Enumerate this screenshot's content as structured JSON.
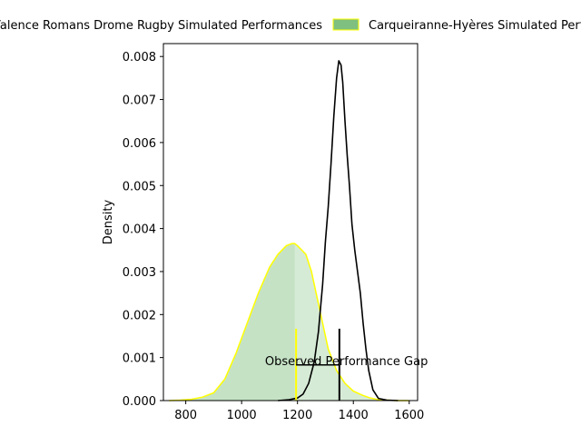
{
  "chart_data": {
    "type": "area",
    "title": "",
    "xlabel": "",
    "ylabel": "Density",
    "xlim": [
      720,
      1630
    ],
    "ylim": [
      0,
      0.0083
    ],
    "xticks": [
      800,
      1000,
      1200,
      1400,
      1600
    ],
    "yticks": [
      0.0,
      0.001,
      0.002,
      0.003,
      0.004,
      0.005,
      0.006,
      0.007,
      0.008
    ],
    "ytick_labels": [
      "0.000",
      "0.001",
      "0.002",
      "0.003",
      "0.004",
      "0.005",
      "0.006",
      "0.007",
      "0.008"
    ],
    "xtick_labels": [
      "800",
      "1000",
      "1200",
      "1400",
      "1600"
    ],
    "grid": false,
    "legend": {
      "placement": "top, above axes, horizontal",
      "entries": [
        {
          "label": "Valence Romans Drome Rugby Simulated Performances",
          "style": "line",
          "color": "#000000"
        },
        {
          "label": "Carqueiranne-Hyères Simulated Performances",
          "style": "filled",
          "fill_color": "#7fbf7f",
          "edge_color": "#ffff00"
        }
      ]
    },
    "series": [
      {
        "name": "Valence Romans Drome Rugby Simulated Performances",
        "kind": "kde-line",
        "color": "#000000",
        "x": [
          1130,
          1170,
          1200,
          1220,
          1240,
          1260,
          1275,
          1290,
          1300,
          1310,
          1320,
          1330,
          1340,
          1348,
          1356,
          1362,
          1370,
          1378,
          1386,
          1395,
          1405,
          1415,
          1425,
          1435,
          1445,
          1455,
          1470,
          1490,
          1520,
          1560
        ],
        "y": [
          0.0,
          2e-05,
          6e-05,
          0.00015,
          0.0004,
          0.0009,
          0.0016,
          0.0027,
          0.0037,
          0.0045,
          0.0055,
          0.0066,
          0.0075,
          0.0079,
          0.0078,
          0.0074,
          0.0065,
          0.0057,
          0.005,
          0.0041,
          0.0035,
          0.003,
          0.0025,
          0.0018,
          0.0012,
          0.0007,
          0.00025,
          5e-05,
          1e-05,
          0.0
        ]
      },
      {
        "name": "Carqueiranne-Hyères Simulated Performances",
        "kind": "kde-filled",
        "fill_color": "#7fbf7f",
        "edge_color": "#ffff00",
        "x": [
          740,
          780,
          820,
          860,
          900,
          940,
          980,
          1020,
          1060,
          1100,
          1130,
          1160,
          1180,
          1190,
          1200,
          1215,
          1230,
          1250,
          1270,
          1290,
          1310,
          1340,
          1370,
          1400,
          1430,
          1460,
          1490,
          1520,
          1560,
          1600
        ],
        "y": [
          0.0,
          1e-05,
          3e-05,
          8e-05,
          0.00018,
          0.0005,
          0.0011,
          0.0018,
          0.0025,
          0.0031,
          0.0034,
          0.0036,
          0.00365,
          0.00365,
          0.0036,
          0.0035,
          0.0034,
          0.003,
          0.0024,
          0.0018,
          0.0012,
          0.0007,
          0.0004,
          0.00022,
          0.00013,
          6e-05,
          2e-05,
          1e-05,
          0.0,
          0.0
        ]
      }
    ],
    "overlay_fill": {
      "x_from": 1190,
      "color": "#7fbf7f",
      "opacity": 0.35
    },
    "annotations": {
      "performance_gap": {
        "text": "Observed Performance Gap",
        "x_text": 1190,
        "y_text": 0.00093,
        "yellow_line": {
          "x": 1195,
          "y0": 0.0,
          "y1": 0.00167,
          "color": "#ffff00"
        },
        "black_line": {
          "x": 1350,
          "y0": 0.0,
          "y1": 0.00167,
          "color": "#000000"
        },
        "gap_bar": {
          "x0": 1195,
          "x1": 1350,
          "y": 0.00083,
          "color": "#000000"
        }
      }
    }
  }
}
